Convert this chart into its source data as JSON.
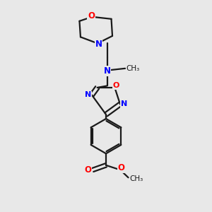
{
  "background_color": "#e8e8e8",
  "bond_color": "#1a1a1a",
  "N_color": "#0000ff",
  "O_color": "#ff0000",
  "line_width": 1.6,
  "fig_size": [
    3.0,
    3.0
  ],
  "dpi": 100,
  "xlim": [
    0.15,
    0.85
  ],
  "ylim": [
    0.02,
    1.0
  ]
}
